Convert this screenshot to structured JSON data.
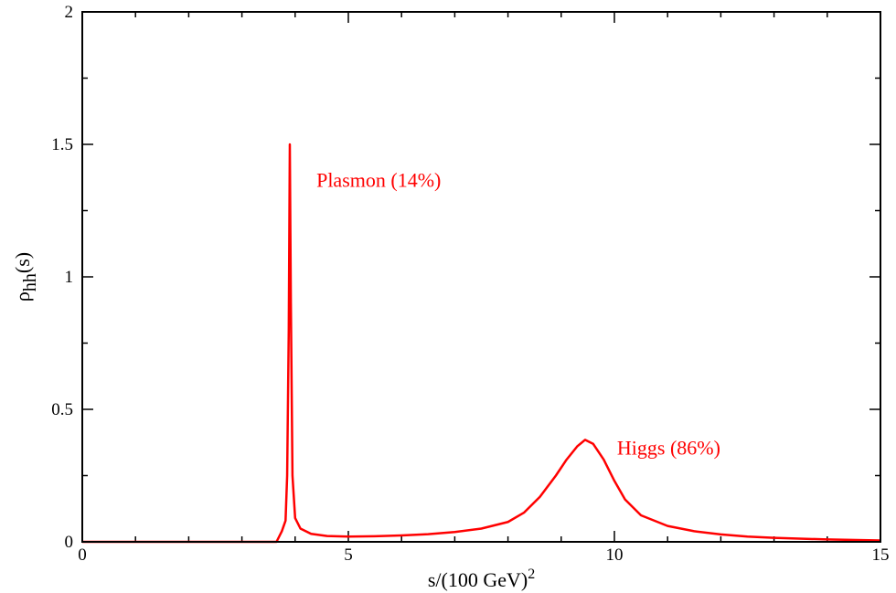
{
  "chart_data": {
    "type": "line",
    "title": "",
    "xlabel": {
      "base": "s/(100 GeV)",
      "sup": "2"
    },
    "ylabel": {
      "base": "ρ",
      "sub": "hh",
      "suffix": "(s)"
    },
    "xlim": [
      0,
      15
    ],
    "ylim": [
      0,
      2
    ],
    "x_ticks": [
      0,
      5,
      10,
      15
    ],
    "x_tick_labels": [
      "0",
      "5",
      "10",
      "15"
    ],
    "y_ticks": [
      0,
      0.5,
      1,
      1.5,
      2
    ],
    "y_tick_labels": [
      "0",
      "0.5",
      "1",
      "1.5",
      "2"
    ],
    "grid": false,
    "series": [
      {
        "color": "#ff0000",
        "x": [
          0,
          3.65,
          3.75,
          3.82,
          3.85,
          3.88,
          3.9,
          3.92,
          3.95,
          4.0,
          4.1,
          4.3,
          4.6,
          5.0,
          5.5,
          6.0,
          6.5,
          7.0,
          7.5,
          8.0,
          8.3,
          8.6,
          8.9,
          9.1,
          9.3,
          9.45,
          9.6,
          9.8,
          10.0,
          10.2,
          10.5,
          11.0,
          11.5,
          12.0,
          12.5,
          13.0,
          14.0,
          15.0
        ],
        "y": [
          0,
          0,
          0.04,
          0.08,
          0.25,
          0.8,
          1.5,
          0.9,
          0.25,
          0.09,
          0.05,
          0.03,
          0.022,
          0.02,
          0.021,
          0.024,
          0.029,
          0.037,
          0.05,
          0.075,
          0.11,
          0.17,
          0.25,
          0.31,
          0.36,
          0.385,
          0.37,
          0.31,
          0.23,
          0.16,
          0.1,
          0.06,
          0.04,
          0.028,
          0.02,
          0.015,
          0.009,
          0.005
        ]
      }
    ],
    "annotations": [
      {
        "text": "Plasmon (14%)",
        "x": 4.4,
        "y": 1.34,
        "color": "#ff0000"
      },
      {
        "text": "Higgs (86%)",
        "x": 10.05,
        "y": 0.33,
        "color": "#ff0000"
      }
    ]
  }
}
